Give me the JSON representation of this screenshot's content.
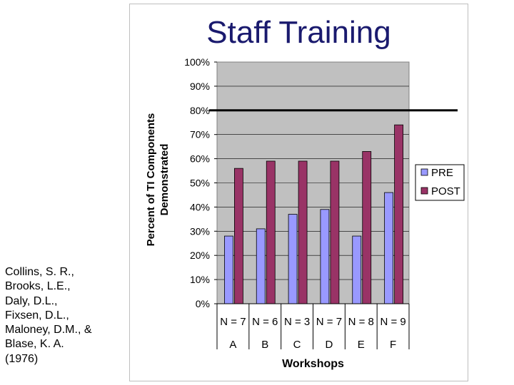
{
  "chart_data": {
    "type": "bar",
    "title": "Staff Training",
    "xlabel": "Workshops",
    "ylabel": "Percent of TI Components Demonstrated",
    "categories": [
      "A",
      "B",
      "C",
      "D",
      "E",
      "F"
    ],
    "sample_sizes": [
      "N = 7",
      "N = 6",
      "N = 3",
      "N = 7",
      "N = 8",
      "N = 9"
    ],
    "series": [
      {
        "name": "PRE",
        "color": "#9999ff",
        "values": [
          28,
          31,
          37,
          39,
          28,
          46
        ]
      },
      {
        "name": "POST",
        "color": "#993366",
        "values": [
          56,
          59,
          59,
          59,
          63,
          74
        ]
      }
    ],
    "ylim": [
      0,
      100
    ],
    "yticks": [
      "0%",
      "10%",
      "20%",
      "30%",
      "40%",
      "50%",
      "60%",
      "70%",
      "80%",
      "90%",
      "100%"
    ],
    "reference_line": 80,
    "grid": true,
    "legend": "right",
    "plot_background": "#c0c0c0"
  },
  "citation": "Collins, S. R.,\nBrooks, L.E.,\nDaly, D.L.,\nFixsen, D.L.,\nMaloney, D.M., &\nBlase, K. A.\n(1976)"
}
